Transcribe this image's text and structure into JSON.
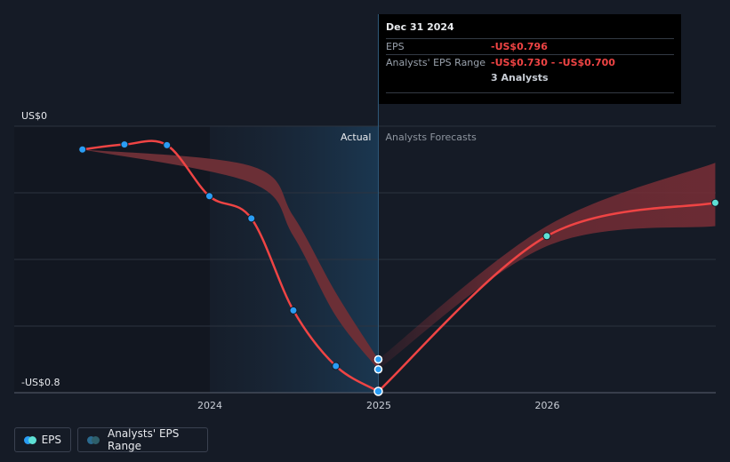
{
  "chart_data": {
    "type": "line",
    "y_label_top": "US$0",
    "y_label_bottom": "-US$0.8",
    "ylim": [
      -0.8,
      0
    ],
    "x_ticks": [
      "2024",
      "2025",
      "2026"
    ],
    "actual_label": "Actual",
    "forecast_label": "Analysts Forecasts",
    "divider_date": "2024-12-31",
    "series": [
      {
        "name": "EPS",
        "color": "#ef4444",
        "marker_color": "#2a9df4",
        "points": [
          {
            "x": "2023-03-31",
            "y": -0.07
          },
          {
            "x": "2023-06-30",
            "y": -0.055
          },
          {
            "x": "2023-09-30",
            "y": -0.057
          },
          {
            "x": "2023-12-31",
            "y": -0.21
          },
          {
            "x": "2024-03-31",
            "y": -0.277
          },
          {
            "x": "2024-06-30",
            "y": -0.553
          },
          {
            "x": "2024-09-30",
            "y": -0.72
          },
          {
            "x": "2024-12-31",
            "y": -0.796
          }
        ]
      },
      {
        "name": "EPS Forecast",
        "color": "#ef4444",
        "marker_color": "#5ee0d5",
        "points": [
          {
            "x": "2024-12-31",
            "y": -0.796
          },
          {
            "x": "2025-12-31",
            "y": -0.33
          },
          {
            "x": "2026-12-31",
            "y": -0.23
          }
        ]
      }
    ],
    "range": {
      "name": "Analysts' EPS Range",
      "low": [
        {
          "x": "2024-12-31",
          "y": -0.73
        },
        {
          "x": "2025-12-31",
          "y": -0.36
        },
        {
          "x": "2026-12-31",
          "y": -0.3
        }
      ],
      "high": [
        {
          "x": "2024-12-31",
          "y": -0.7
        },
        {
          "x": "2025-12-31",
          "y": -0.3
        },
        {
          "x": "2026-12-31",
          "y": -0.11
        }
      ]
    },
    "past_range": {
      "low": [
        {
          "x": "2023-03-31",
          "y": -0.07
        },
        {
          "x": "2024-03-31",
          "y": -0.17
        },
        {
          "x": "2024-06-30",
          "y": -0.33
        },
        {
          "x": "2024-09-30",
          "y": -0.57
        },
        {
          "x": "2024-12-31",
          "y": -0.73
        }
      ],
      "high": [
        {
          "x": "2023-03-31",
          "y": -0.07
        },
        {
          "x": "2024-03-31",
          "y": -0.12
        },
        {
          "x": "2024-06-30",
          "y": -0.27
        },
        {
          "x": "2024-09-30",
          "y": -0.5
        },
        {
          "x": "2024-12-31",
          "y": -0.7
        }
      ]
    }
  },
  "tooltip": {
    "date": "Dec 31 2024",
    "eps_label": "EPS",
    "eps_value": "-US$0.796",
    "range_label": "Analysts' EPS Range",
    "range_value": "-US$0.730 - -US$0.700",
    "analysts": "3 Analysts"
  },
  "legend": {
    "eps": "EPS",
    "range": "Analysts' EPS Range"
  }
}
